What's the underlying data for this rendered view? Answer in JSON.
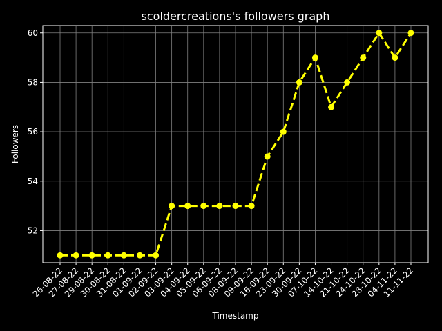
{
  "chart_data": {
    "type": "line",
    "title": "scoldercreations's followers graph",
    "xlabel": "Timestamp",
    "ylabel": "Followers",
    "categories": [
      "26-08-22",
      "27-08-22",
      "29-08-22",
      "30-08-22",
      "31-08-22",
      "01-09-22",
      "02-09-22",
      "03-09-22",
      "04-09-22",
      "05-09-22",
      "06-09-22",
      "08-09-22",
      "09-09-22",
      "16-09-22",
      "23-09-22",
      "30-09-22",
      "07-10-22",
      "14-10-22",
      "21-10-22",
      "24-10-22",
      "28-10-22",
      "04-11-22",
      "11-11-22"
    ],
    "series": [
      {
        "values": [
          51,
          51,
          51,
          51,
          51,
          51,
          51,
          53,
          53,
          53,
          53,
          53,
          53,
          55,
          56,
          58,
          59,
          57,
          58,
          59,
          60,
          59,
          60
        ],
        "color": "#ffff00",
        "line_style": "dashed",
        "marker": "circle"
      }
    ],
    "yticks": [
      52,
      54,
      56,
      58,
      60
    ],
    "ylim": [
      50.7,
      60.3
    ],
    "grid": true,
    "background": "#000000",
    "foreground": "#ffffff",
    "grid_color": "#808080"
  }
}
